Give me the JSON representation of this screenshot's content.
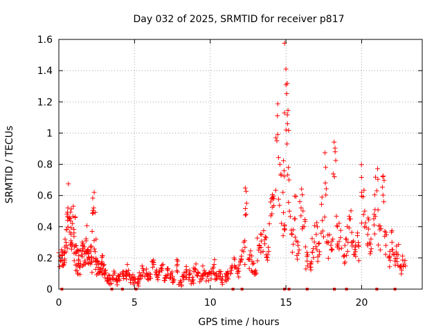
{
  "chart_data": {
    "type": "scatter",
    "title": "Day 032 of 2025, SRMTID for receiver p817",
    "xlabel": "GPS time / hours",
    "ylabel": "SRMTID / TECUs",
    "xlim": [
      0,
      24
    ],
    "ylim": [
      0,
      1.6
    ],
    "xticks": [
      0,
      5,
      10,
      15,
      20
    ],
    "xtick_labels": [
      "0",
      "5",
      "10",
      "15",
      "20"
    ],
    "yticks": [
      0,
      0.2,
      0.4,
      0.6,
      0.8,
      1.0,
      1.2,
      1.4,
      1.6
    ],
    "ytick_labels": [
      "0",
      "0.2",
      "0.4",
      "0.6",
      "0.8",
      "1",
      "1.2",
      "1.4",
      "1.6"
    ],
    "grid": true,
    "marker": "plus",
    "color": "#ff0000",
    "series": [
      {
        "name": "SRMTID",
        "x": [
          0.1,
          0.2,
          0.3,
          0.4,
          0.5,
          0.6,
          0.7,
          0.8,
          0.9,
          1.0,
          1.1,
          1.2,
          1.3,
          1.4,
          1.5,
          1.6,
          1.7,
          1.8,
          1.9,
          2.0,
          2.1,
          2.2,
          2.3,
          2.4,
          2.5,
          2.6,
          2.7,
          2.8,
          2.9,
          3.0,
          3.2,
          3.4,
          3.6,
          3.8,
          4.0,
          4.2,
          4.4,
          4.6,
          4.8,
          5.0,
          5.2,
          5.4,
          5.6,
          5.8,
          6.0,
          6.2,
          6.4,
          6.6,
          6.8,
          7.0,
          7.2,
          7.4,
          7.6,
          7.8,
          8.0,
          8.2,
          8.4,
          8.6,
          8.8,
          9.0,
          9.2,
          9.4,
          9.6,
          9.8,
          10.0,
          10.2,
          10.4,
          10.6,
          10.8,
          11.0,
          11.2,
          11.4,
          11.6,
          11.8,
          12.0,
          12.2,
          12.4,
          12.6,
          12.8,
          13.0,
          13.2,
          13.4,
          13.6,
          13.8,
          14.0,
          14.2,
          14.4,
          14.6,
          14.8,
          14.9,
          15.0,
          15.1,
          15.2,
          15.4,
          15.6,
          15.8,
          16.0,
          16.2,
          16.4,
          16.6,
          16.8,
          17.0,
          17.2,
          17.4,
          17.6,
          17.8,
          18.0,
          18.2,
          18.4,
          18.6,
          18.8,
          19.0,
          19.2,
          19.4,
          19.6,
          19.8,
          20.0,
          20.2,
          20.4,
          20.6,
          20.8,
          21.0,
          21.2,
          21.4,
          21.6,
          21.8,
          22.0,
          22.2,
          22.4,
          22.6,
          22.8
        ],
        "y": [
          0.18,
          0.22,
          0.15,
          0.27,
          0.38,
          0.52,
          0.45,
          0.31,
          0.42,
          0.36,
          0.28,
          0.12,
          0.19,
          0.14,
          0.22,
          0.26,
          0.18,
          0.31,
          0.25,
          0.2,
          0.16,
          0.37,
          0.52,
          0.24,
          0.18,
          0.14,
          0.11,
          0.16,
          0.13,
          0.1,
          0.07,
          0.06,
          0.09,
          0.05,
          0.08,
          0.1,
          0.09,
          0.12,
          0.07,
          0.06,
          0.04,
          0.09,
          0.12,
          0.1,
          0.08,
          0.14,
          0.11,
          0.09,
          0.13,
          0.07,
          0.12,
          0.1,
          0.06,
          0.15,
          0.04,
          0.08,
          0.11,
          0.09,
          0.05,
          0.13,
          0.1,
          0.06,
          0.12,
          0.08,
          0.1,
          0.14,
          0.07,
          0.11,
          0.06,
          0.08,
          0.1,
          0.12,
          0.15,
          0.1,
          0.18,
          0.24,
          0.55,
          0.2,
          0.16,
          0.12,
          0.25,
          0.35,
          0.29,
          0.22,
          0.47,
          0.58,
          0.95,
          0.8,
          0.62,
          0.38,
          1.41,
          1.06,
          0.7,
          0.35,
          0.45,
          0.28,
          0.52,
          0.4,
          0.18,
          0.14,
          0.26,
          0.35,
          0.22,
          0.44,
          0.68,
          0.3,
          0.25,
          0.72,
          0.4,
          0.33,
          0.21,
          0.32,
          0.45,
          0.3,
          0.24,
          0.28,
          0.62,
          0.5,
          0.35,
          0.24,
          0.45,
          0.63,
          0.38,
          0.72,
          0.28,
          0.2,
          0.3,
          0.18,
          0.22,
          0.15,
          0.16
        ]
      }
    ],
    "zero_level_markers_x": [
      0.2,
      3.5,
      4.2,
      5.1,
      11.5,
      12.1,
      14.9,
      15.2,
      16.4,
      18.2,
      19.0,
      21.0,
      22.2
    ]
  }
}
